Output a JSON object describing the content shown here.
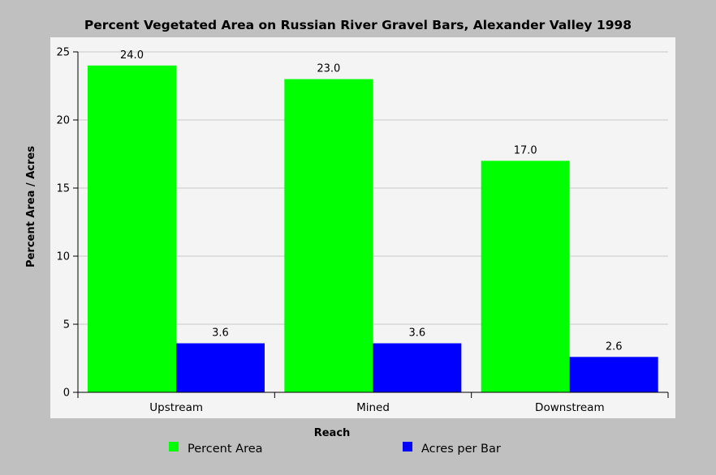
{
  "colors": {
    "background": "#c0c0c0",
    "plot_background": "#f4f4f4",
    "grid": "#c8c8c8",
    "series": [
      "#00ff00",
      "#0000ff"
    ]
  },
  "chart_data": {
    "type": "bar",
    "title": "Percent Vegetated Area on Russian River Gravel Bars, Alexander Valley 1998",
    "xlabel": "Reach",
    "ylabel": "Percent Area / Acres",
    "categories": [
      "Upstream",
      "Mined",
      "Downstream"
    ],
    "series": [
      {
        "name": "Percent Area",
        "values": [
          24.0,
          23.0,
          17.0
        ],
        "labels": [
          "24.0",
          "23.0",
          "17.0"
        ]
      },
      {
        "name": "Acres per Bar",
        "values": [
          3.6,
          3.6,
          2.6
        ],
        "labels": [
          "3.6",
          "3.6",
          "2.6"
        ]
      }
    ],
    "ylim": [
      0,
      25
    ],
    "yticks": [
      "0",
      "5",
      "10",
      "15",
      "20",
      "25"
    ],
    "grid": true,
    "legend": "bottom"
  }
}
